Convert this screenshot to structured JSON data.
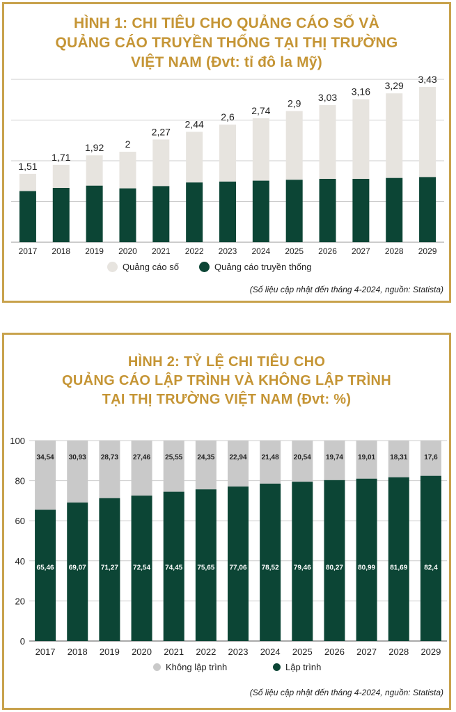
{
  "colors": {
    "border": "#c8a24c",
    "title": "#c59535",
    "dark": "#0c4535",
    "light1": "#e7e4df",
    "light2": "#c9c9c9",
    "grid": "#cccccc"
  },
  "chart1": {
    "title_lines": [
      "HÌNH 1: CHI TIÊU CHO QUẢNG CÁO SỐ VÀ",
      "QUẢNG CÁO TRUYỀN THỐNG TẠI THỊ TRƯỜNG",
      "VIỆT NAM (Đvt: tỉ đô la Mỹ)"
    ],
    "legend": {
      "digital": "Quảng cáo số",
      "traditional": "Quảng cáo truyền thống"
    },
    "source": "(Số liệu cập nhật đến tháng 4-2024, nguồn: Statista)"
  },
  "chart2": {
    "title_lines": [
      "HÌNH 2: TỶ LỆ CHI TIÊU CHO",
      "QUẢNG CÁO LẬP TRÌNH VÀ KHÔNG LẬP TRÌNH",
      "TẠI THỊ TRƯỜNG VIỆT NAM (Đvt: %)"
    ],
    "legend": {
      "non_programmatic": "Không lập trình",
      "programmatic": "Lập trình"
    },
    "source": "(Số liệu cập nhật đến tháng 4-2024, nguồn: Statista)"
  },
  "chart_data": [
    {
      "type": "bar",
      "stacked": true,
      "title": "HÌNH 1: CHI TIÊU CHO QUẢNG CÁO SỐ VÀ QUẢNG CÁO TRUYỀN THỐNG TẠI THỊ TRƯỜNG VIỆT NAM (Đvt: tỉ đô la Mỹ)",
      "categories": [
        "2017",
        "2018",
        "2019",
        "2020",
        "2021",
        "2022",
        "2023",
        "2024",
        "2025",
        "2026",
        "2027",
        "2028",
        "2029"
      ],
      "totals": [
        1.51,
        1.71,
        1.92,
        2,
        2.27,
        2.44,
        2.6,
        2.74,
        2.9,
        3.03,
        3.16,
        3.29,
        3.43
      ],
      "total_labels": [
        "1,51",
        "1,71",
        "1,92",
        "2",
        "2,27",
        "2,44",
        "2,6",
        "2,74",
        "2,9",
        "3,03",
        "3,16",
        "3,29",
        "3,43"
      ],
      "series": [
        {
          "name": "Quảng cáo truyền thống",
          "color": "#0c4535",
          "values": [
            1.13,
            1.2,
            1.25,
            1.19,
            1.24,
            1.32,
            1.34,
            1.36,
            1.38,
            1.4,
            1.4,
            1.42,
            1.44
          ]
        },
        {
          "name": "Quảng cáo số",
          "color": "#e7e4df",
          "values": [
            0.38,
            0.51,
            0.67,
            0.81,
            1.03,
            1.12,
            1.26,
            1.38,
            1.52,
            1.63,
            1.76,
            1.87,
            1.99
          ]
        }
      ],
      "ylim": [
        0,
        3.6
      ],
      "grid": true,
      "legend_position": "bottom"
    },
    {
      "type": "bar",
      "stacked": true,
      "title": "HÌNH 2: TỶ LỆ CHI TIÊU CHO QUẢNG CÁO LẬP TRÌNH VÀ KHÔNG LẬP TRÌNH TẠI THỊ TRƯỜNG VIỆT NAM (Đvt: %)",
      "categories": [
        "2017",
        "2018",
        "2019",
        "2020",
        "2021",
        "2022",
        "2023",
        "2024",
        "2025",
        "2026",
        "2027",
        "2028",
        "2029"
      ],
      "series": [
        {
          "name": "Lập trình",
          "color": "#0c4535",
          "values": [
            65.46,
            69.07,
            71.27,
            72.54,
            74.45,
            75.65,
            77.06,
            78.52,
            79.46,
            80.27,
            80.99,
            81.69,
            82.4
          ],
          "labels": [
            "65,46",
            "69,07",
            "71,27",
            "72,54",
            "74,45",
            "75,65",
            "77,06",
            "78,52",
            "79,46",
            "80,27",
            "80,99",
            "81,69",
            "82,4"
          ]
        },
        {
          "name": "Không lập trình",
          "color": "#c9c9c9",
          "values": [
            34.54,
            30.93,
            28.73,
            27.46,
            25.55,
            24.35,
            22.94,
            21.48,
            20.54,
            19.74,
            19.01,
            18.31,
            17.6
          ],
          "labels": [
            "34,54",
            "30,93",
            "28,73",
            "27,46",
            "25,55",
            "24,35",
            "22,94",
            "21,48",
            "20,54",
            "19,74",
            "19,01",
            "18,31",
            "17,6"
          ]
        }
      ],
      "ylim": [
        0,
        100
      ],
      "yticks": [
        "0",
        "20",
        "40",
        "60",
        "80",
        "100"
      ],
      "grid": true,
      "legend_position": "bottom"
    }
  ]
}
